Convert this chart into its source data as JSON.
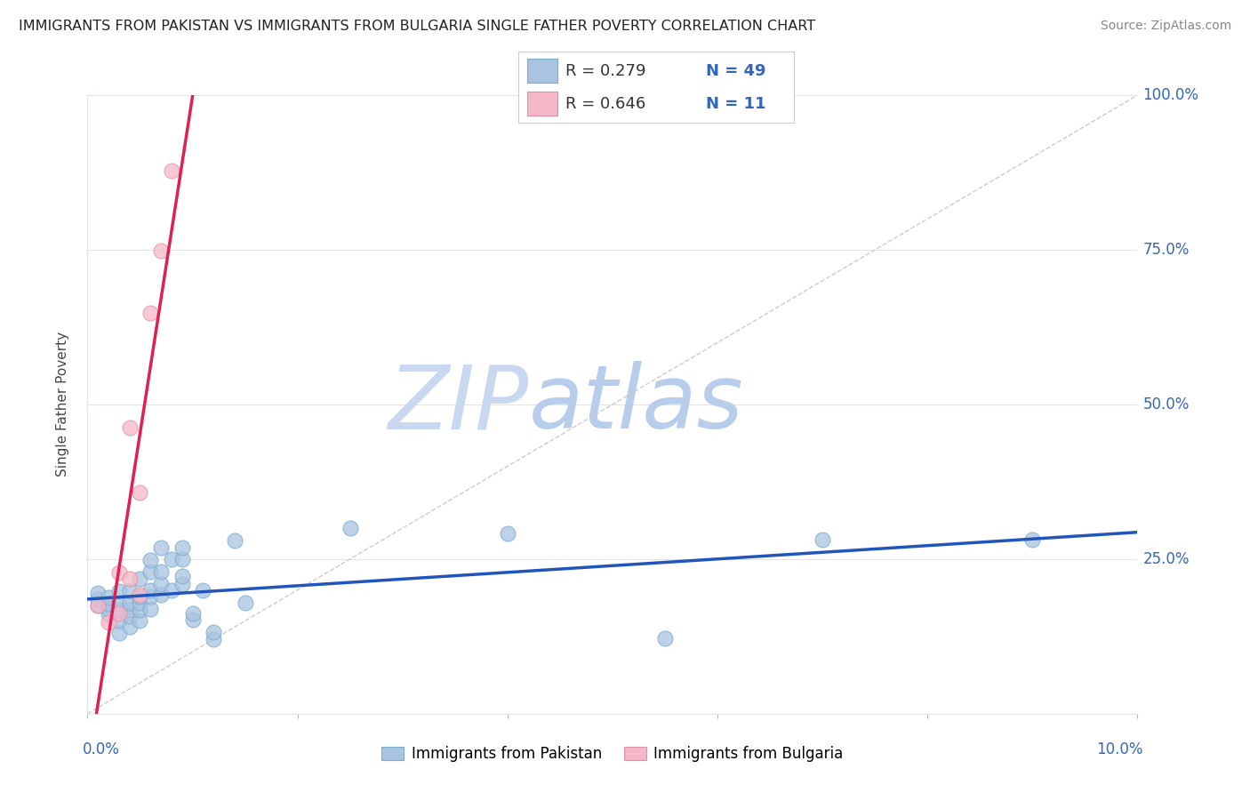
{
  "title": "IMMIGRANTS FROM PAKISTAN VS IMMIGRANTS FROM BULGARIA SINGLE FATHER POVERTY CORRELATION CHART",
  "source": "Source: ZipAtlas.com",
  "ylabel": "Single Father Poverty",
  "y_ticks": [
    0.0,
    0.25,
    0.5,
    0.75,
    1.0
  ],
  "y_tick_labels": [
    "",
    "25.0%",
    "50.0%",
    "75.0%",
    "100.0%"
  ],
  "x_ticks": [
    0.0,
    0.02,
    0.04,
    0.06,
    0.08,
    0.1
  ],
  "pakistan_R": 0.279,
  "pakistan_N": 49,
  "bulgaria_R": 0.646,
  "bulgaria_N": 11,
  "pakistan_color": "#a8c4e0",
  "pakistan_edge_color": "#7aaace",
  "pakistan_line_color": "#2255bb",
  "bulgaria_color": "#f5b8c8",
  "bulgaria_edge_color": "#e090a8",
  "bulgaria_line_color": "#e02050",
  "watermark_zip_color": "#c8d8f0",
  "watermark_atlas_color": "#b0c8e8",
  "background_color": "#ffffff",
  "grid_color": "#dde5f0",
  "title_color": "#222222",
  "source_color": "#888888",
  "axis_label_color": "#3366bb",
  "tick_color": "#aabbcc",
  "pakistan_x": [
    0.001,
    0.001,
    0.001,
    0.002,
    0.002,
    0.002,
    0.002,
    0.003,
    0.003,
    0.003,
    0.003,
    0.003,
    0.004,
    0.004,
    0.004,
    0.004,
    0.004,
    0.005,
    0.005,
    0.005,
    0.005,
    0.005,
    0.006,
    0.006,
    0.006,
    0.006,
    0.006,
    0.007,
    0.007,
    0.007,
    0.007,
    0.008,
    0.008,
    0.009,
    0.009,
    0.009,
    0.009,
    0.01,
    0.01,
    0.011,
    0.012,
    0.012,
    0.014,
    0.015,
    0.025,
    0.04,
    0.055,
    0.07,
    0.09
  ],
  "pakistan_y": [
    0.175,
    0.185,
    0.195,
    0.16,
    0.17,
    0.178,
    0.188,
    0.13,
    0.15,
    0.168,
    0.178,
    0.198,
    0.14,
    0.158,
    0.168,
    0.18,
    0.198,
    0.15,
    0.168,
    0.18,
    0.19,
    0.218,
    0.17,
    0.19,
    0.2,
    0.23,
    0.248,
    0.192,
    0.21,
    0.23,
    0.268,
    0.2,
    0.25,
    0.21,
    0.222,
    0.25,
    0.268,
    0.152,
    0.162,
    0.2,
    0.12,
    0.132,
    0.28,
    0.18,
    0.3,
    0.292,
    0.122,
    0.282,
    0.282
  ],
  "bulgaria_x": [
    0.001,
    0.002,
    0.003,
    0.003,
    0.004,
    0.004,
    0.005,
    0.005,
    0.006,
    0.007,
    0.008
  ],
  "bulgaria_y": [
    0.175,
    0.148,
    0.162,
    0.228,
    0.462,
    0.218,
    0.192,
    0.358,
    0.648,
    0.748,
    0.878
  ]
}
